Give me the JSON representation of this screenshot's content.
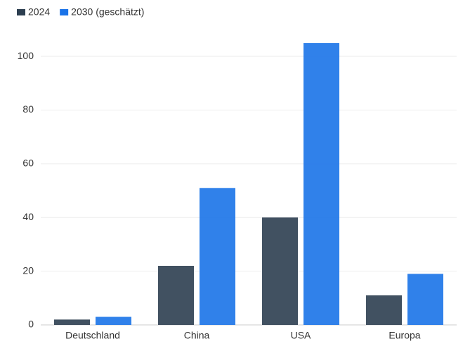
{
  "chart_data": {
    "type": "bar",
    "categories": [
      "Deutschland",
      "China",
      "USA",
      "Europa"
    ],
    "series": [
      {
        "name": "2024",
        "color": "#2c3e50",
        "values": [
          2,
          22,
          40,
          11
        ]
      },
      {
        "name": "2030 (geschätzt)",
        "color": "#1a73e8",
        "values": [
          3,
          51,
          105,
          19
        ]
      }
    ],
    "ylim": [
      0,
      110
    ],
    "yticks": [
      0,
      20,
      40,
      60,
      80,
      100
    ],
    "grid": true
  }
}
